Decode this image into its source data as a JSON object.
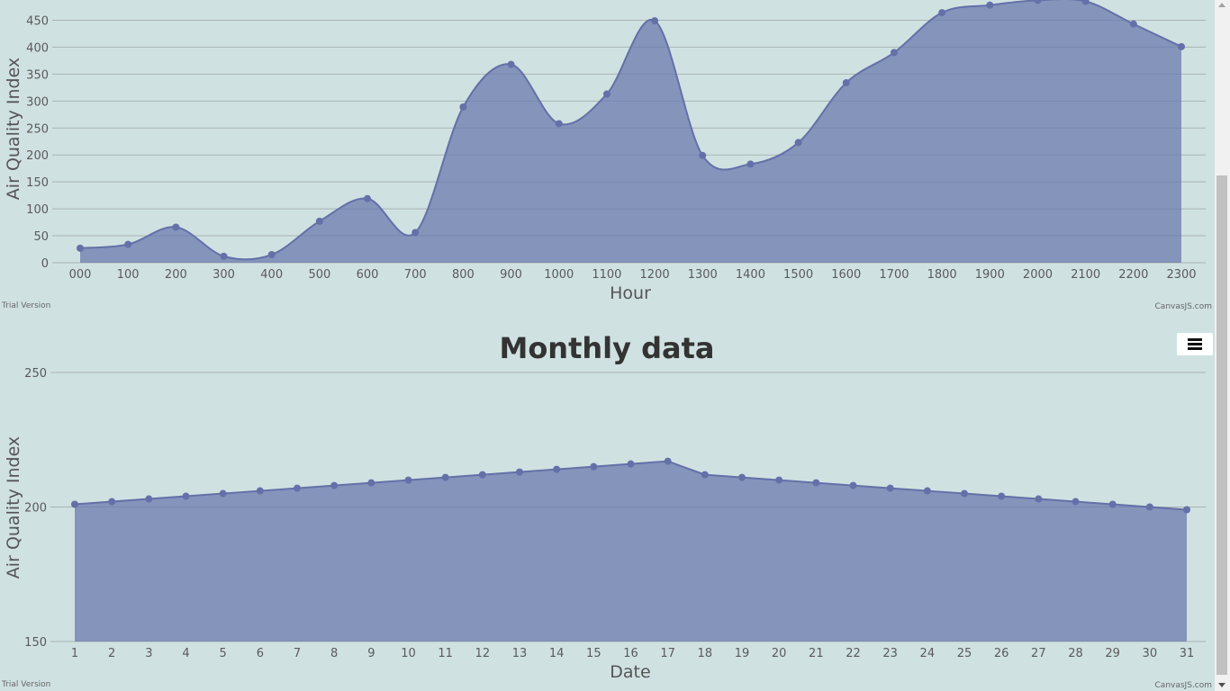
{
  "chart_data": [
    {
      "type": "area",
      "title": "",
      "xlabel": "Hour",
      "ylabel": "Air Quality Index",
      "ylim": [
        0,
        480
      ],
      "yticks": [
        0,
        50,
        100,
        150,
        200,
        250,
        300,
        350,
        400,
        450
      ],
      "categories": [
        "000",
        "100",
        "200",
        "300",
        "400",
        "500",
        "600",
        "700",
        "800",
        "900",
        "1000",
        "1100",
        "1200",
        "1300",
        "1400",
        "1500",
        "1600",
        "1700",
        "1800",
        "1900",
        "2000",
        "2100",
        "2200",
        "2300"
      ],
      "values": [
        27,
        34,
        66,
        12,
        15,
        77,
        119,
        56,
        289,
        368,
        258,
        313,
        449,
        199,
        183,
        223,
        334,
        390,
        464,
        478,
        487,
        485,
        443,
        401
      ],
      "color": "#6b79ad",
      "credit_left": "Trial Version",
      "credit_right": "CanvasJS.com"
    },
    {
      "type": "area",
      "title": "Monthly data",
      "xlabel": "Date",
      "ylabel": "Air Quality Index",
      "ylim": [
        150,
        250
      ],
      "yticks": [
        150,
        200,
        250
      ],
      "categories": [
        "1",
        "2",
        "3",
        "4",
        "5",
        "6",
        "7",
        "8",
        "9",
        "10",
        "11",
        "12",
        "13",
        "14",
        "15",
        "16",
        "17",
        "18",
        "19",
        "20",
        "21",
        "22",
        "23",
        "24",
        "25",
        "26",
        "27",
        "28",
        "29",
        "30",
        "31"
      ],
      "values": [
        201,
        202,
        203,
        204,
        205,
        206,
        207,
        208,
        209,
        210,
        211,
        212,
        213,
        214,
        215,
        216,
        217,
        212,
        211,
        210,
        209,
        208,
        207,
        206,
        205,
        204,
        203,
        202,
        201,
        200,
        199
      ],
      "color": "#6b79ad",
      "credit_left": "Trial Version",
      "credit_right": "CanvasJS.com"
    }
  ],
  "menu": {
    "icon": "hamburger-menu-icon"
  }
}
